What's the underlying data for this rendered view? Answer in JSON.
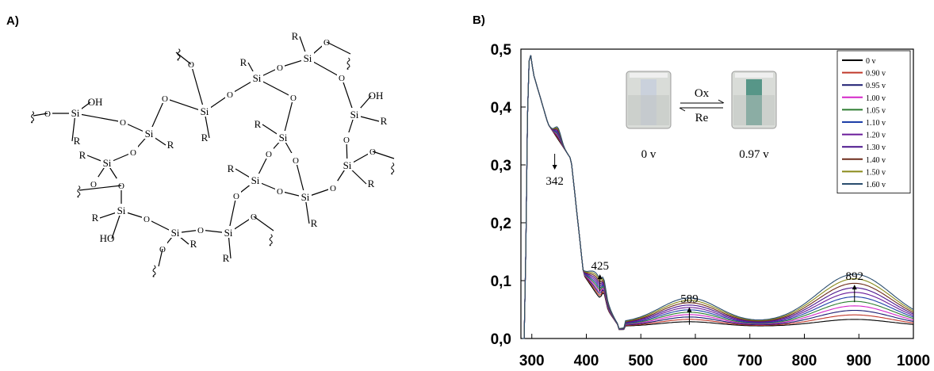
{
  "panels": {
    "a_label": "A)",
    "b_label": "B)"
  },
  "structure": {
    "atoms": {
      "si": "Si",
      "o": "O",
      "r": "R",
      "oh": "OH",
      "ho": "HO"
    }
  },
  "inset": {
    "left_label": "0 v",
    "right_label": "0.97 v",
    "forward": "Ox",
    "reverse": "Re"
  },
  "chart_data": {
    "type": "line",
    "x_ticks": [
      "300",
      "400",
      "500",
      "600",
      "700",
      "800",
      "900",
      "1000"
    ],
    "y_ticks": [
      "0,0",
      "0,1",
      "0,2",
      "0,3",
      "0,4",
      "0,5"
    ],
    "xlim": [
      280,
      1000
    ],
    "ylim": [
      0,
      0.5
    ],
    "legend_position": "top-right",
    "annotations": [
      {
        "text": "342",
        "x": 342,
        "y": 0.3,
        "direction": "down"
      },
      {
        "text": "425",
        "x": 425,
        "y": 0.1,
        "direction": "up"
      },
      {
        "text": "589",
        "x": 589,
        "y": 0.043,
        "direction": "up"
      },
      {
        "text": "892",
        "x": 892,
        "y": 0.082,
        "direction": "up"
      }
    ],
    "series": [
      {
        "name": "0 v",
        "color": "#000000",
        "intensity": 0.0
      },
      {
        "name": "0.90 v",
        "color": "#c0392b",
        "intensity": 0.1
      },
      {
        "name": "0.95 v",
        "color": "#1a1a70",
        "intensity": 0.2
      },
      {
        "name": "1.00 v",
        "color": "#d426c8",
        "intensity": 0.3
      },
      {
        "name": "1.05 v",
        "color": "#2e7d32",
        "intensity": 0.4
      },
      {
        "name": "1.10 v",
        "color": "#1e3fa8",
        "intensity": 0.5
      },
      {
        "name": "1.20 v",
        "color": "#6a1b9a",
        "intensity": 0.6
      },
      {
        "name": "1.30 v",
        "color": "#4a148c",
        "intensity": 0.7
      },
      {
        "name": "1.40 v",
        "color": "#6d2c1b",
        "intensity": 0.8
      },
      {
        "name": "1.50 v",
        "color": "#8a8a1a",
        "intensity": 0.9
      },
      {
        "name": "1.60 v",
        "color": "#2a4d6e",
        "intensity": 1.0
      }
    ]
  }
}
